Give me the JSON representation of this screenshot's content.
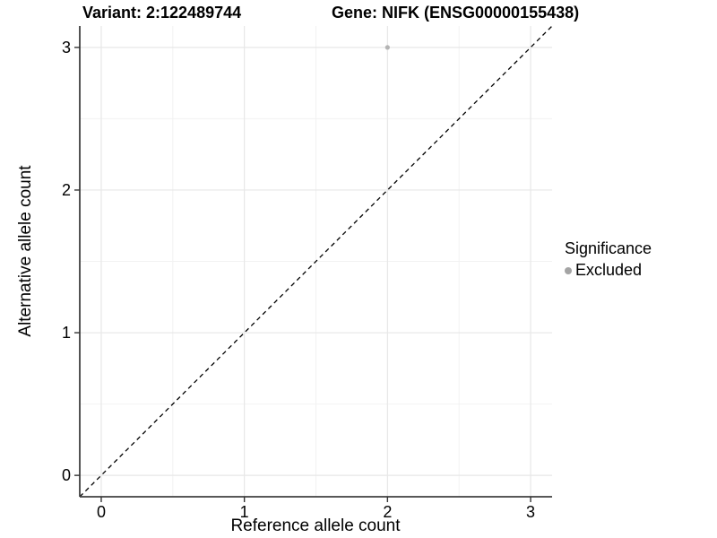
{
  "titles": {
    "variant": "Variant: 2:122489744",
    "gene": "Gene: NIFK (ENSG00000155438)"
  },
  "chart_data": {
    "type": "scatter",
    "title_left": "Variant: 2:122489744",
    "title_right": "Gene: NIFK (ENSG00000155438)",
    "xlabel": "Reference allele count",
    "ylabel": "Alternative allele count",
    "xlim": [
      -0.15,
      3.15
    ],
    "ylim": [
      -0.15,
      3.15
    ],
    "x_ticks": [
      0,
      1,
      2,
      3
    ],
    "y_ticks": [
      0,
      1,
      2,
      3
    ],
    "x_minor_ticks": [
      0.5,
      1.5,
      2.5
    ],
    "y_minor_ticks": [
      0.5,
      1.5,
      2.5
    ],
    "grid": true,
    "points": [
      {
        "x": 2,
        "y": 3,
        "significance": "Excluded"
      }
    ],
    "reference_line": {
      "type": "identity",
      "slope": 1,
      "intercept": 0,
      "style": "dashed"
    },
    "legend": {
      "title": "Significance",
      "position": "right",
      "entries": [
        {
          "label": "Excluded",
          "color": "#a4a4a4"
        }
      ]
    },
    "colors": {
      "point": "#b4b4b4",
      "legend_dot": "#a4a4a4",
      "grid_major": "#e7e7e7",
      "grid_minor": "#f2f2f2",
      "axis_line": "#404040",
      "tick": "#333333",
      "reference_line": "#000000",
      "background": "#ffffff"
    }
  }
}
